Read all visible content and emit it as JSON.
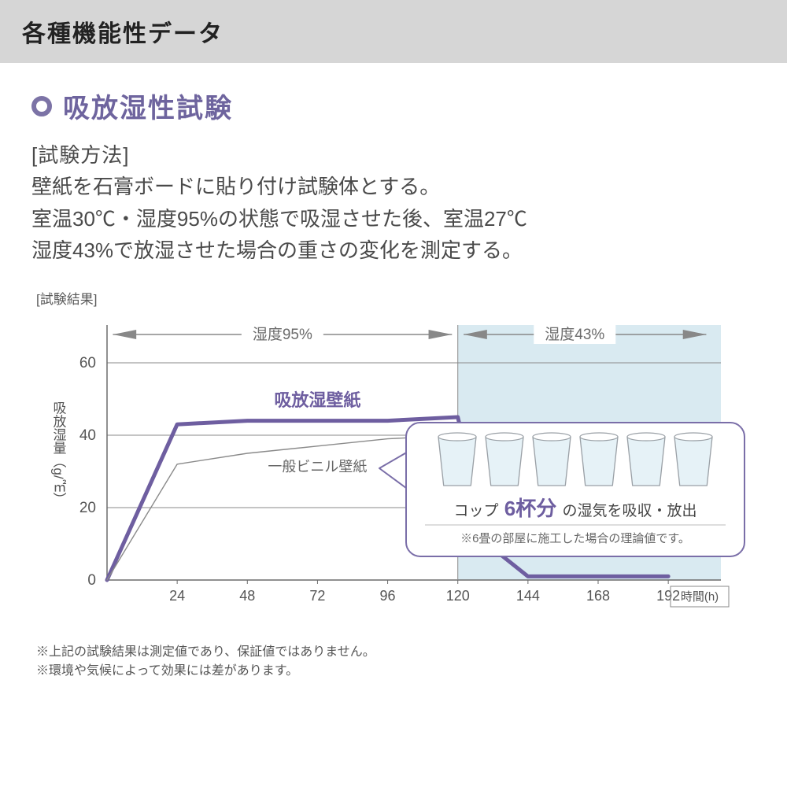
{
  "header": {
    "title": "各種機能性データ"
  },
  "section": {
    "title": "吸放湿性試験",
    "bullet_color": "#7c73a6",
    "title_color": "#6e649e",
    "method_label": "[試験方法]",
    "method_lines": [
      "壁紙を石膏ボードに貼り付け試験体とする。",
      "室温30℃・湿度95%の状態で吸湿させた後、室温27℃",
      "湿度43%で放湿させた場合の重さの変化を測定する。"
    ],
    "result_label": "[試験結果]"
  },
  "chart": {
    "type": "line",
    "y_label": "吸放湿量（g/㎡）",
    "x_label": "時間(h)",
    "y_ticks": [
      0,
      20,
      40,
      60
    ],
    "x_ticks": [
      24,
      48,
      72,
      96,
      120,
      144,
      168,
      192
    ],
    "x_extent": [
      0,
      210
    ],
    "y_extent": [
      0,
      70
    ],
    "grid_color": "#8a8a8a",
    "axis_color": "#6b6b6b",
    "background_color": "#ffffff",
    "shaded_region": {
      "from_x": 120,
      "to_x": 210,
      "fill": "#d5e8ef",
      "opacity": 0.9
    },
    "zone_labels": [
      {
        "text": "湿度95%",
        "x": 60,
        "color": "#6b6b6b"
      },
      {
        "text": "湿度43%",
        "x": 160,
        "color": "#6b6b6b"
      }
    ],
    "series": [
      {
        "name": "吸放湿壁紙",
        "label": "吸放湿壁紙",
        "color": "#6e5ea0",
        "width": 5,
        "points": [
          [
            0,
            0
          ],
          [
            24,
            43
          ],
          [
            48,
            44
          ],
          [
            72,
            44
          ],
          [
            96,
            44
          ],
          [
            120,
            45
          ],
          [
            130,
            10
          ],
          [
            144,
            1
          ],
          [
            168,
            1
          ],
          [
            192,
            1
          ]
        ]
      },
      {
        "name": "一般ビニル壁紙",
        "label": "一般ビニル壁紙",
        "color": "#8a8a8a",
        "width": 1.4,
        "points": [
          [
            0,
            0
          ],
          [
            24,
            32
          ],
          [
            48,
            35
          ],
          [
            72,
            37
          ],
          [
            96,
            39
          ],
          [
            120,
            40
          ],
          [
            130,
            20
          ]
        ]
      }
    ],
    "callout": {
      "border_color": "#7a6ea8",
      "border_width": 2,
      "fill": "#ffffff",
      "corner_radius": 18,
      "cup_count": 6,
      "cup_fill": "#e6f2f7",
      "cup_stroke": "#9aa0a6",
      "line1_pre": "コップ",
      "line1_em": "6杯分",
      "line1_post": "の湿気を吸収・放出",
      "line1_em_color": "#6e5ea0",
      "line2": "※6畳の部屋に施工した場合の理論値です。"
    },
    "arrow_color": "#888888"
  },
  "notes": [
    "※上記の試験結果は測定値であり、保証値ではありません。",
    "※環境や気候によって効果には差があります。"
  ]
}
